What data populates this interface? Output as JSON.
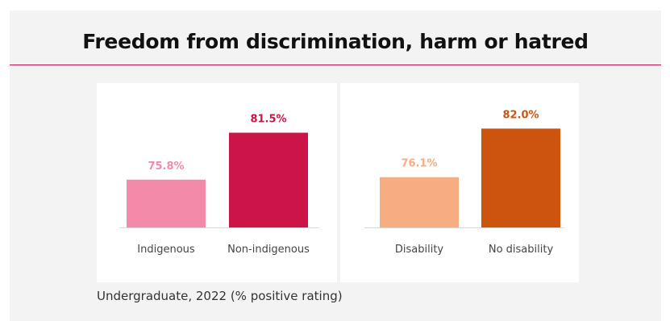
{
  "title": "Freedom from discrimination, harm or hatred",
  "caption": "Undergraduate, 2022 (% positive rating)",
  "colors": {
    "rule": "#c8104a",
    "indigenous": "#f48aaa",
    "non_indigenous": "#cc1448",
    "disability": "#f7ad82",
    "no_disability": "#cd540f"
  },
  "chart_data": [
    {
      "type": "bar",
      "categories": [
        "Indigenous",
        "Non-indigenous"
      ],
      "values": [
        75.8,
        81.5
      ],
      "value_labels": [
        "75.8%",
        "81.5%"
      ],
      "colors": [
        "#f48aaa",
        "#cc1448"
      ],
      "ylim": [
        70,
        84
      ]
    },
    {
      "type": "bar",
      "categories": [
        "Disability",
        "No disability"
      ],
      "values": [
        76.1,
        82.0
      ],
      "value_labels": [
        "76.1%",
        "82.0%"
      ],
      "colors": [
        "#f7ad82",
        "#cd540f"
      ],
      "ylim": [
        70,
        84
      ]
    }
  ]
}
